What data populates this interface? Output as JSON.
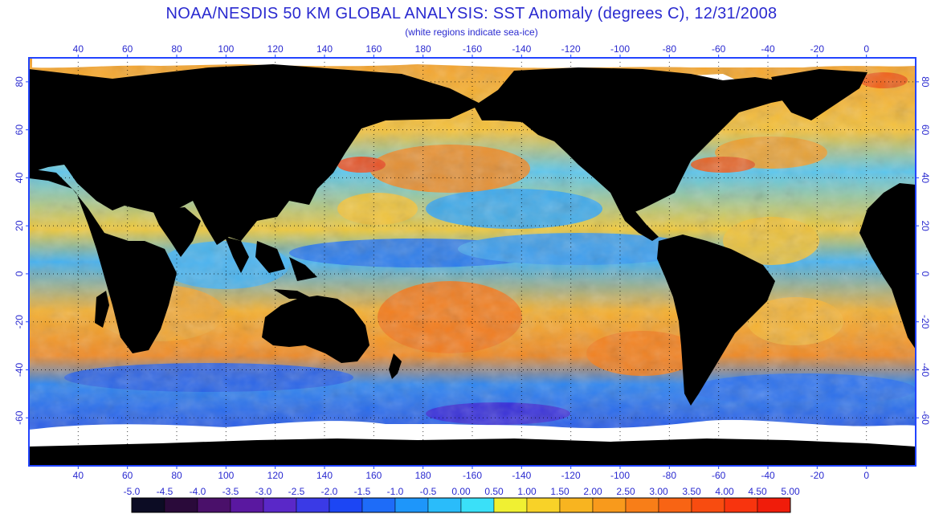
{
  "header": {
    "title": "NOAA/NESDIS 50 KM GLOBAL ANALYSIS: SST Anomaly (degrees C), 12/31/2008",
    "subtitle": "(white regions indicate sea-ice)"
  },
  "map": {
    "lon_ticks": [
      "40",
      "60",
      "80",
      "100",
      "120",
      "140",
      "160",
      "180",
      "-160",
      "-140",
      "-120",
      "-100",
      "-80",
      "-60",
      "-40",
      "-20",
      "0"
    ],
    "lat_ticks": [
      "80",
      "60",
      "40",
      "20",
      "0",
      "-20",
      "-40",
      "-60"
    ],
    "lon_range": [
      20,
      380
    ],
    "lat_range": [
      -80,
      90
    ]
  },
  "colorbar": {
    "labels": [
      "-5.0",
      "-4.5",
      "-4.0",
      "-3.5",
      "-3.0",
      "-2.5",
      "-2.0",
      "-1.5",
      "-1.0",
      "-0.5",
      "0.00",
      "0.50",
      "1.00",
      "1.50",
      "2.00",
      "2.50",
      "3.00",
      "3.50",
      "4.00",
      "4.50",
      "5.00"
    ],
    "colors": [
      "#0c0c24",
      "#2a0a3a",
      "#4a106a",
      "#5a18a0",
      "#5a28c8",
      "#3a3ae6",
      "#1c46f4",
      "#1e6cf8",
      "#1e96fa",
      "#2abcfa",
      "#3ae0f8",
      "#f0f032",
      "#f8d228",
      "#f8b420",
      "#f89a1c",
      "#f87e18",
      "#f86414",
      "#f84c10",
      "#f8340e",
      "#f01c0a"
    ]
  },
  "colors": {
    "land": "#000000",
    "ice": "#ffffff",
    "label": "#2a2ad0",
    "frame": "#2244ff"
  }
}
